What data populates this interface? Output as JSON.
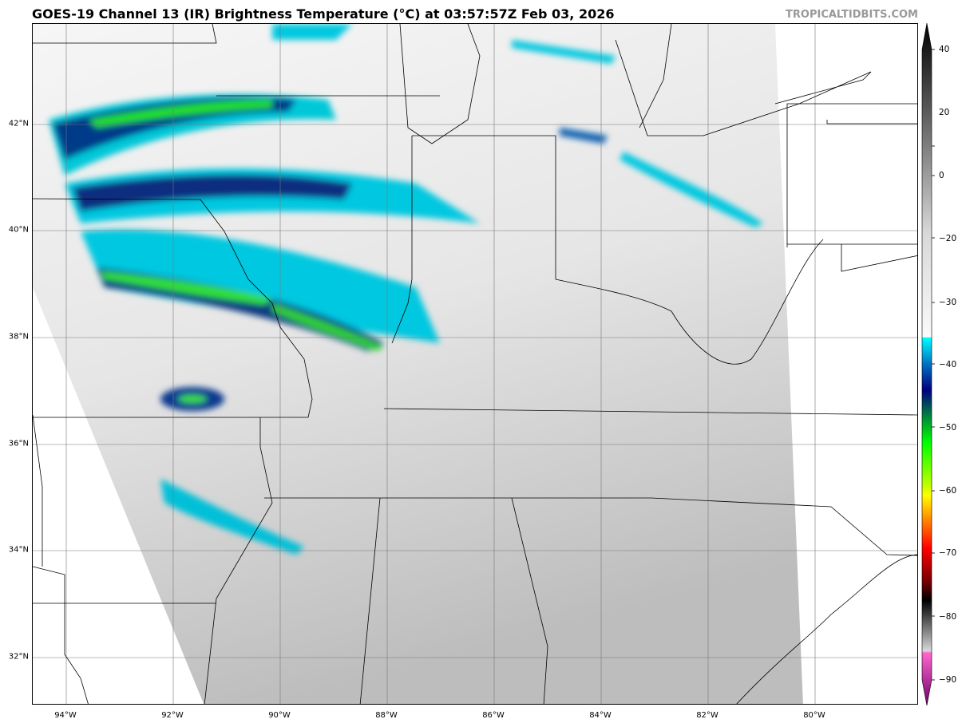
{
  "header": {
    "title": "GOES-19 Channel 13 (IR) Brightness Temperature (°C) at 03:57:57Z Feb 03, 2026",
    "brand": "TROPICALTIDBITS.COM"
  },
  "map": {
    "lon_labels": [
      "94°W",
      "92°W",
      "90°W",
      "88°W",
      "86°W",
      "84°W",
      "82°W",
      "80°W"
    ],
    "lat_labels": [
      "42°N",
      "40°N",
      "38°N",
      "36°N",
      "34°N",
      "32°N"
    ]
  },
  "colorbar": {
    "ticks": [
      "40",
      "20",
      "0",
      "−20",
      "−30",
      "−40",
      "−50",
      "−60",
      "−70",
      "−80",
      "−90"
    ],
    "tick_values": [
      40,
      20,
      0,
      -20,
      -30,
      -40,
      -50,
      -60,
      -70,
      -80,
      -90
    ],
    "range": [
      -90,
      40
    ],
    "colors": {
      "warm": "#000000",
      "neutral": "#f4f4f4",
      "cyan": "#00ffff",
      "navy": "#000080",
      "green": "#00ff00",
      "yellow": "#ffff00",
      "red": "#ff0000",
      "pink": "#ff66cc",
      "purple": "#6a006a"
    }
  }
}
